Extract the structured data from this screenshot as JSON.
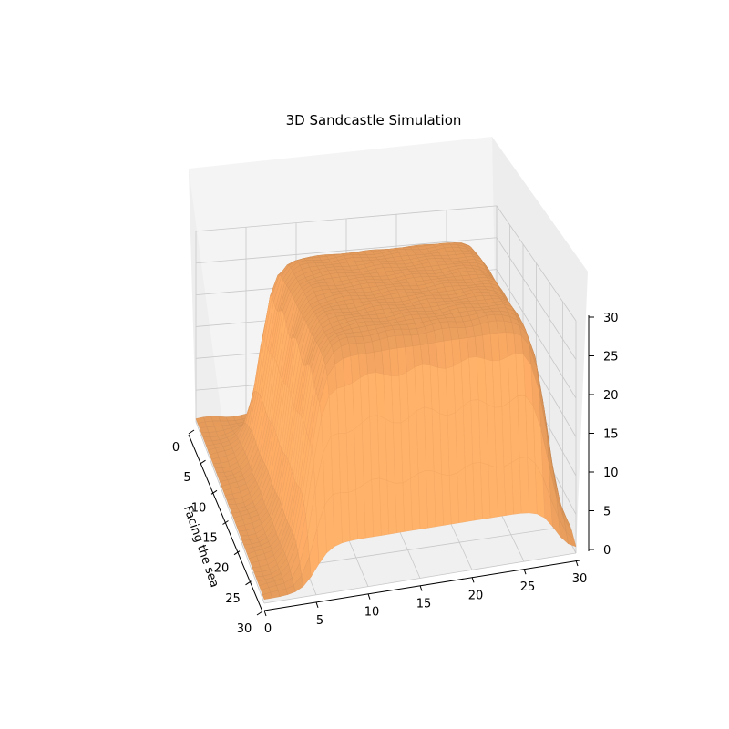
{
  "chart_data": {
    "type": "surface3d",
    "title": "3D Sandcastle Simulation",
    "xlabel": "",
    "ylabel": "Facing the sea",
    "zlabel": "",
    "xlim": [
      0,
      30
    ],
    "ylim": [
      0,
      30
    ],
    "zlim": [
      0,
      30
    ],
    "x_ticks": [
      "0",
      "5",
      "10",
      "15",
      "20",
      "25",
      "30"
    ],
    "y_ticks": [
      "0",
      "5",
      "10",
      "15",
      "20",
      "25",
      "30"
    ],
    "z_ticks": [
      "0",
      "5",
      "10",
      "15",
      "20",
      "25",
      "30"
    ],
    "grid": true,
    "surface_color": "#e59b5b",
    "surface": {
      "base_height": 0.5,
      "castle_height": 30,
      "castle_x_range": [
        5,
        28
      ],
      "castle_y_range": [
        4,
        29
      ]
    }
  }
}
